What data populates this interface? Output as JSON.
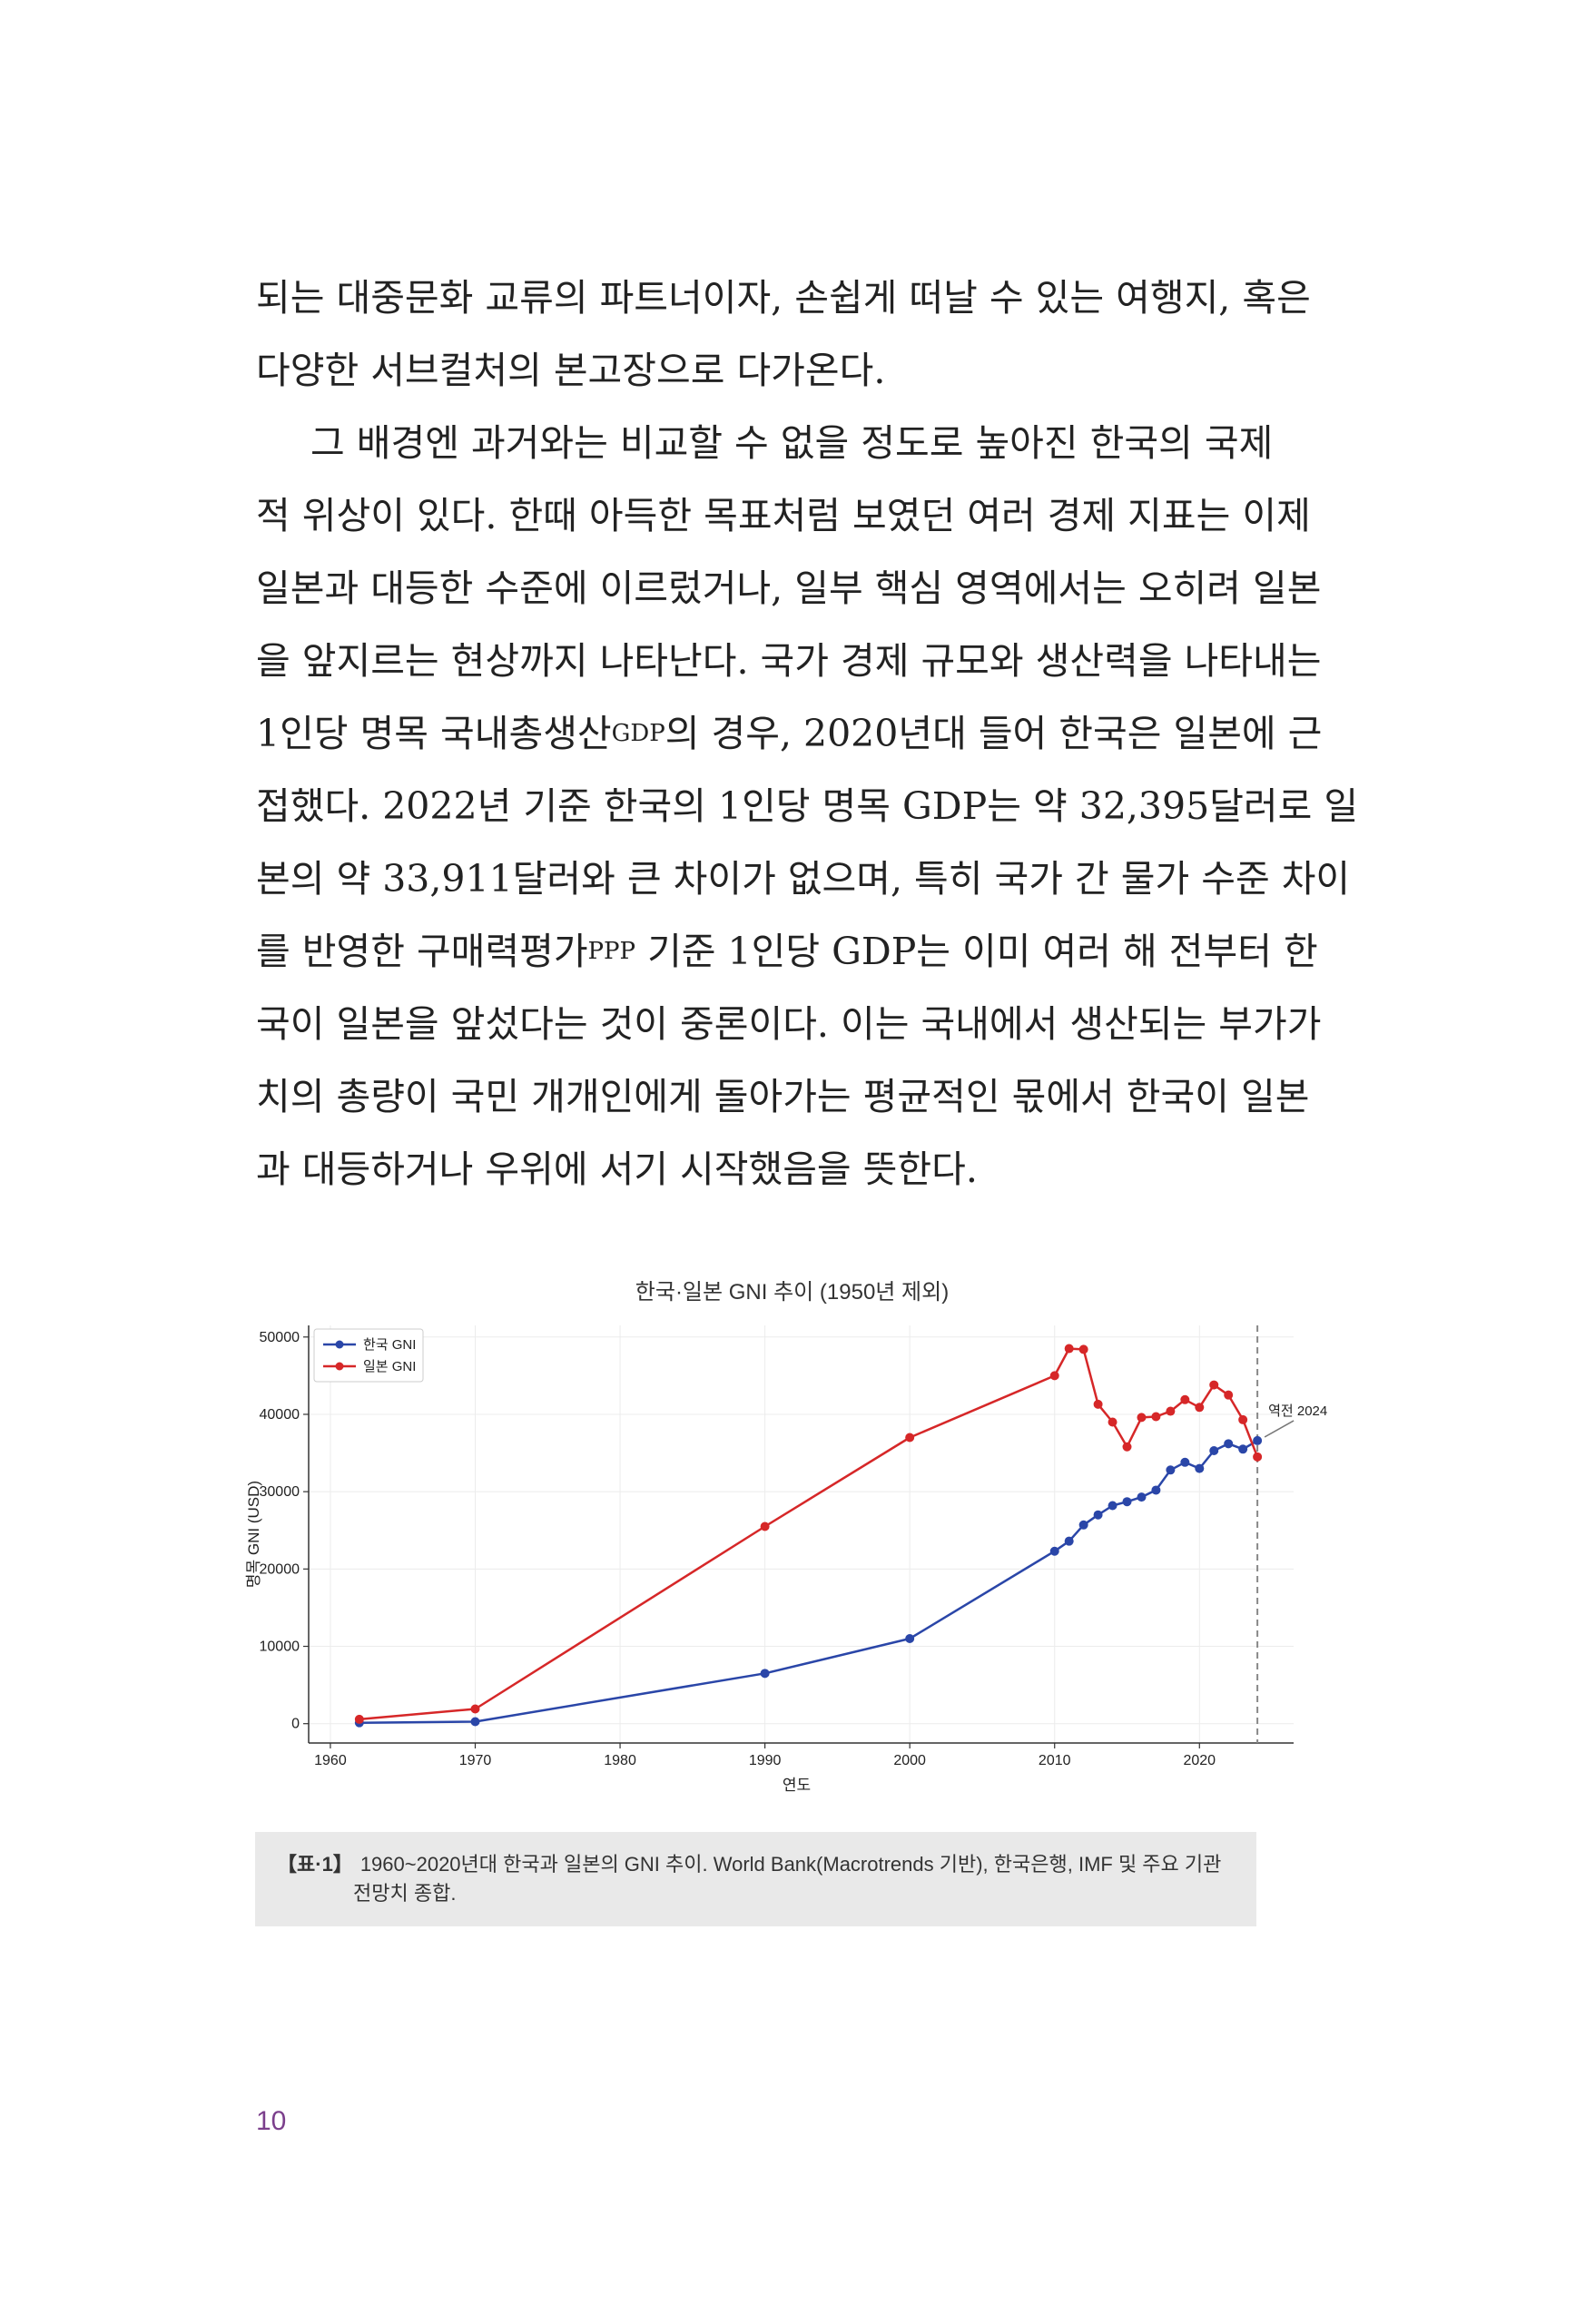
{
  "body": {
    "p1": {
      "lines": [
        "되는 대중문화 교류의 파트너이자, 손쉽게 떠날 수 있는 여행지, 혹은",
        "다양한 서브컬처의 본고장으로 다가온다."
      ]
    },
    "p2": {
      "line1": "그 배경엔 과거와는 비교할 수 없을 정도로 높아진 한국의 국제",
      "line2": "적 위상이 있다. 한때 아득한 목표처럼 보였던 여러 경제 지표는 이제",
      "line3": "일본과 대등한 수준에 이르렀거나, 일부 핵심 영역에서는 오히려 일본",
      "line4": "을 앞지르는 현상까지 나타난다. 국가 경제 규모와 생산력을 나타내는",
      "line5_a": "1인당 명목 국내총생산",
      "line5_sub": "GDP",
      "line5_b": "의 경우, 2020년대 들어 한국은 일본에 근",
      "line6": "접했다. 2022년 기준 한국의 1인당 명목 GDP는 약 32,395달러로 일",
      "line7": "본의 약 33,911달러와 큰 차이가 없으며, 특히 국가 간 물가 수준 차이",
      "line8_a": "를 반영한 구매력평가",
      "line8_sub": "PPP",
      "line8_b": " 기준 1인당 GDP는 이미 여러 해 전부터 한",
      "line9": "국이 일본을 앞섰다는 것이 중론이다. 이는 국내에서 생산되는 부가가",
      "line10": "치의 총량이 국민 개개인에게 돌아가는 평균적인 몫에서 한국이 일본",
      "line11": "과 대등하거나 우위에 서기 시작했음을 뜻한다."
    }
  },
  "chart_data": {
    "type": "line",
    "title": "한국·일본 GNI 추이 (1950년 제외)",
    "xlabel": "연도",
    "ylabel": "명목 GNI (USD)",
    "xlim": [
      1958.5,
      2026.5
    ],
    "ylim": [
      -2500,
      51500
    ],
    "xticks": [
      1960,
      1970,
      1980,
      1990,
      2000,
      2010,
      2020
    ],
    "yticks": [
      0,
      10000,
      20000,
      30000,
      40000,
      50000
    ],
    "grid": true,
    "legend": "top-left",
    "series": [
      {
        "name": "한국 GNI",
        "color": "#2a46a8",
        "x": [
          1962,
          1970,
          1990,
          2000,
          2010,
          2011,
          2012,
          2013,
          2014,
          2015,
          2016,
          2017,
          2018,
          2019,
          2020,
          2021,
          2022,
          2023,
          2024
        ],
        "y": [
          120,
          260,
          6500,
          11000,
          22300,
          23600,
          25700,
          27000,
          28200,
          28700,
          29300,
          30200,
          32800,
          33800,
          33000,
          35300,
          36200,
          35500,
          36600
        ]
      },
      {
        "name": "일본 GNI",
        "color": "#d62728",
        "x": [
          1962,
          1970,
          1990,
          2000,
          2010,
          2011,
          2012,
          2013,
          2014,
          2015,
          2016,
          2017,
          2018,
          2019,
          2020,
          2021,
          2022,
          2023,
          2024
        ],
        "y": [
          560,
          1900,
          25500,
          37000,
          45000,
          48500,
          48400,
          41300,
          39000,
          35800,
          39600,
          39700,
          40400,
          41900,
          40900,
          43800,
          42500,
          39300,
          34500
        ]
      }
    ],
    "reference_line": {
      "x": 2024,
      "style": "dashed",
      "color": "#888888"
    },
    "annotation": {
      "text": "역전 2024",
      "x": 2024,
      "y": 36600
    }
  },
  "caption": {
    "label": "【표·1】",
    "line1": "1960~2020년대 한국과 일본의 GNI 추이. World Bank(Macrotrends 기반), 한국은행, IMF 및 주요 기관",
    "line2": "전망치 종합."
  },
  "page_number": "10"
}
